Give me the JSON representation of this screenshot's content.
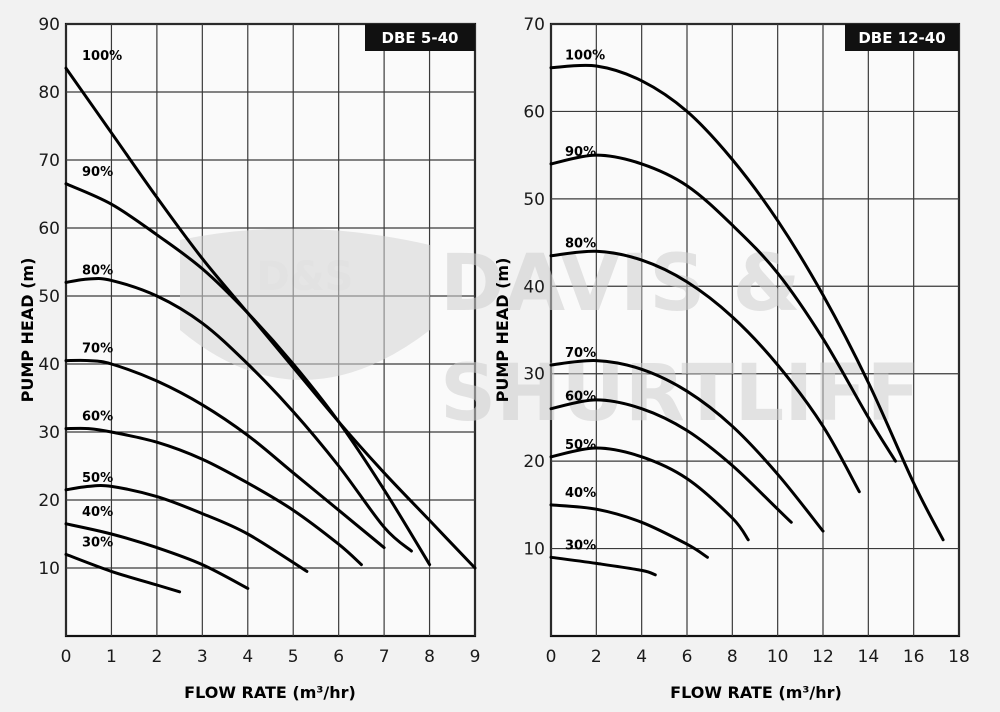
{
  "watermark": {
    "badge_text": "D&S",
    "line1": "DAVIS &",
    "line2": "SHURTLIFF"
  },
  "chart_data": [
    {
      "type": "line",
      "title": "DBE 5-40",
      "xlabel": "FLOW RATE (m³/hr)",
      "ylabel": "PUMP HEAD (m)",
      "xlim": [
        0,
        9
      ],
      "ylim": [
        0,
        90
      ],
      "x_ticks": [
        0,
        1,
        2,
        3,
        4,
        5,
        6,
        7,
        8,
        9
      ],
      "y_ticks": [
        10,
        20,
        30,
        40,
        50,
        60,
        70,
        80,
        90
      ],
      "grid": true,
      "series": [
        {
          "name": "100%",
          "x": [
            0,
            1,
            2,
            3,
            4,
            5,
            6,
            7,
            8,
            9
          ],
          "y": [
            83.5,
            74,
            64.5,
            55.5,
            47.5,
            39.5,
            31.5,
            24,
            17,
            10
          ]
        },
        {
          "name": "90%",
          "x": [
            0,
            1,
            2,
            3,
            4,
            5,
            6,
            7,
            8
          ],
          "y": [
            66.5,
            63.5,
            59,
            54,
            47.5,
            40,
            31.5,
            21.5,
            10.5
          ]
        },
        {
          "name": "80%",
          "x": [
            0,
            0.5,
            1,
            2,
            3,
            4,
            5,
            6,
            7,
            7.6
          ],
          "y": [
            52,
            52.5,
            52.3,
            50,
            46,
            40,
            33,
            25,
            16,
            12.5
          ]
        },
        {
          "name": "70%",
          "x": [
            0,
            0.5,
            1,
            2,
            3,
            4,
            5,
            6,
            7
          ],
          "y": [
            40.5,
            40.5,
            40,
            37.5,
            34,
            29.5,
            24,
            18.5,
            13
          ]
        },
        {
          "name": "60%",
          "x": [
            0,
            0.5,
            1,
            2,
            3,
            4,
            5,
            6,
            6.5
          ],
          "y": [
            30.5,
            30.5,
            30,
            28.5,
            26,
            22.5,
            18.5,
            13.5,
            10.5
          ]
        },
        {
          "name": "50%",
          "x": [
            0,
            0.5,
            1,
            2,
            3,
            4,
            5.3
          ],
          "y": [
            21.5,
            22,
            22,
            20.5,
            18,
            15,
            9.5
          ]
        },
        {
          "name": "40%",
          "x": [
            0,
            1,
            2,
            3,
            4
          ],
          "y": [
            16.5,
            15,
            13,
            10.5,
            7
          ]
        },
        {
          "name": "30%",
          "x": [
            0,
            1,
            2,
            2.5
          ],
          "y": [
            12,
            9.5,
            7.5,
            6.5
          ]
        }
      ]
    },
    {
      "type": "line",
      "title": "DBE 12-40",
      "xlabel": "FLOW RATE (m³/hr)",
      "ylabel": "PUMP HEAD (m)",
      "xlim": [
        0,
        18
      ],
      "ylim": [
        0,
        70
      ],
      "x_ticks": [
        0,
        2,
        4,
        6,
        8,
        10,
        12,
        14,
        16,
        18
      ],
      "y_ticks": [
        10,
        20,
        30,
        40,
        50,
        60,
        70
      ],
      "grid": true,
      "series": [
        {
          "name": "100%",
          "x": [
            0,
            2,
            4,
            6,
            8,
            10,
            12,
            14,
            16,
            17.3
          ],
          "y": [
            65,
            65.2,
            63.5,
            60,
            54.5,
            47.5,
            39,
            29,
            17.5,
            11
          ]
        },
        {
          "name": "90%",
          "x": [
            0,
            2,
            4,
            6,
            8,
            10,
            12,
            14,
            15.2
          ],
          "y": [
            54,
            55,
            54,
            51.5,
            47,
            41.5,
            34,
            25,
            20
          ]
        },
        {
          "name": "80%",
          "x": [
            0,
            2,
            4,
            6,
            8,
            10,
            12,
            13.6
          ],
          "y": [
            43.5,
            44,
            43,
            40.5,
            36.5,
            31,
            24,
            16.5
          ]
        },
        {
          "name": "70%",
          "x": [
            0,
            2,
            4,
            6,
            8,
            10,
            12
          ],
          "y": [
            31,
            31.5,
            30.5,
            28,
            24,
            18.5,
            12
          ]
        },
        {
          "name": "60%",
          "x": [
            0,
            2,
            4,
            6,
            8,
            10,
            10.6
          ],
          "y": [
            26,
            27,
            26,
            23.5,
            19.5,
            14.5,
            13
          ]
        },
        {
          "name": "50%",
          "x": [
            0,
            2,
            4,
            6,
            8,
            8.7
          ],
          "y": [
            20.5,
            21.5,
            20.5,
            18,
            13.5,
            11
          ]
        },
        {
          "name": "40%",
          "x": [
            0,
            2,
            4,
            6,
            6.9
          ],
          "y": [
            15,
            14.5,
            13,
            10.5,
            9
          ]
        },
        {
          "name": "30%",
          "x": [
            0,
            2,
            4,
            4.6
          ],
          "y": [
            9,
            8.3,
            7.5,
            7
          ]
        }
      ]
    }
  ]
}
